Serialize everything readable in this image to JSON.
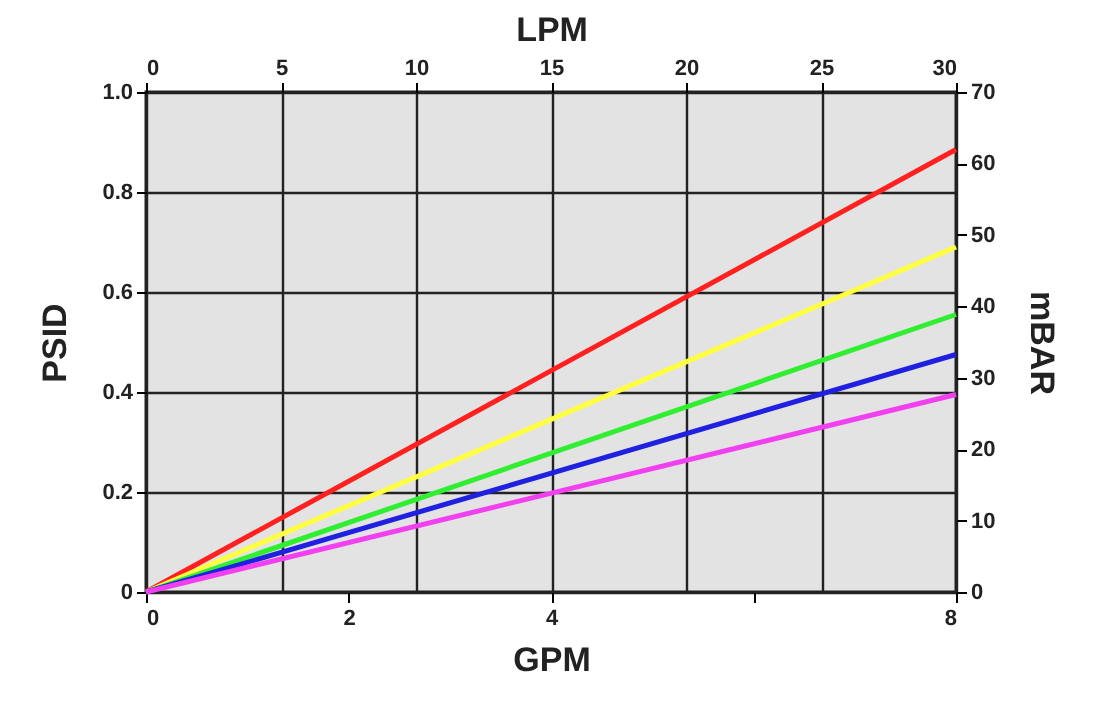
{
  "chart_data": {
    "type": "line",
    "xlabel": "GPM",
    "ylabel": "PSID",
    "x2label": "LPM",
    "y2label": "mBAR",
    "xlim": [
      0,
      8
    ],
    "xticks": [
      0,
      2,
      4,
      {
        "value": 6,
        "label": null
      },
      8
    ],
    "ylim": [
      0,
      1
    ],
    "yticks": [
      0,
      0.2,
      0.4,
      0.6,
      0.8,
      {
        "value": 1,
        "label": "1.0"
      }
    ],
    "x2lim": [
      0,
      30
    ],
    "x2ticks": [
      0,
      5,
      10,
      15,
      20,
      25,
      30
    ],
    "y2lim": [
      0,
      70
    ],
    "y2ticks": [
      0,
      10,
      20,
      30,
      40,
      50,
      60,
      70
    ],
    "grid": true,
    "legend": false,
    "line_style": "solid",
    "x": [
      0,
      8
    ],
    "series": [
      {
        "color": "#ff2020",
        "values": [
          0,
          0.885
        ]
      },
      {
        "color": "#ffff40",
        "values": [
          0,
          0.69
        ]
      },
      {
        "color": "#30ee30",
        "values": [
          0,
          0.555
        ]
      },
      {
        "color": "#2020e0",
        "values": [
          0,
          0.475
        ]
      },
      {
        "color": "#f040f0",
        "values": [
          0,
          0.395
        ]
      }
    ]
  }
}
